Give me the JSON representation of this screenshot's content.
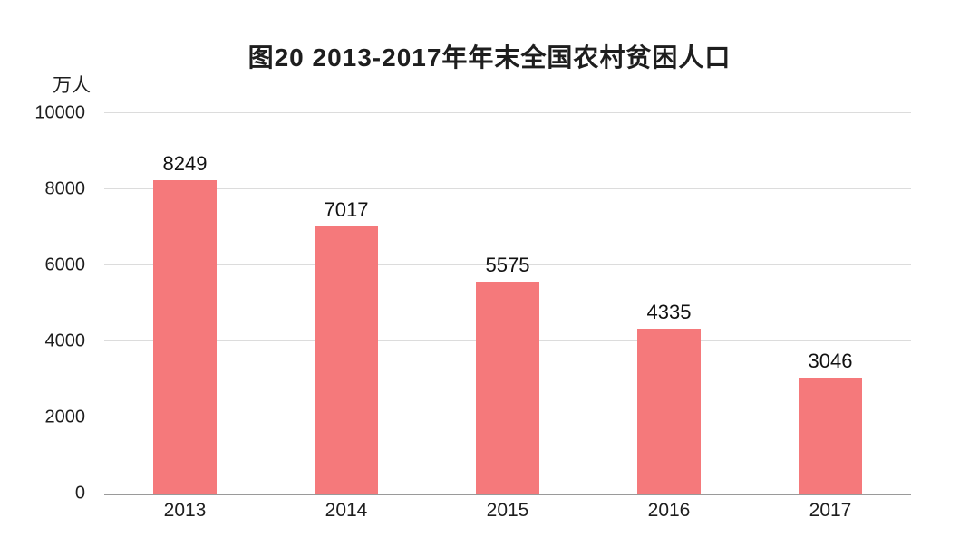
{
  "chart_data": {
    "type": "bar",
    "title": "图20  2013-2017年年末全国农村贫困人口",
    "unit_label": "万人",
    "ylabel": "万人",
    "xlabel": "",
    "categories": [
      "2013",
      "2014",
      "2015",
      "2016",
      "2017"
    ],
    "values": [
      8249,
      7017,
      5575,
      4335,
      3046
    ],
    "ylim": [
      0,
      10000
    ],
    "yticks": [
      0,
      2000,
      4000,
      6000,
      8000,
      10000
    ],
    "bar_color": "#f5797b",
    "grid": true,
    "legend_position": "none"
  }
}
